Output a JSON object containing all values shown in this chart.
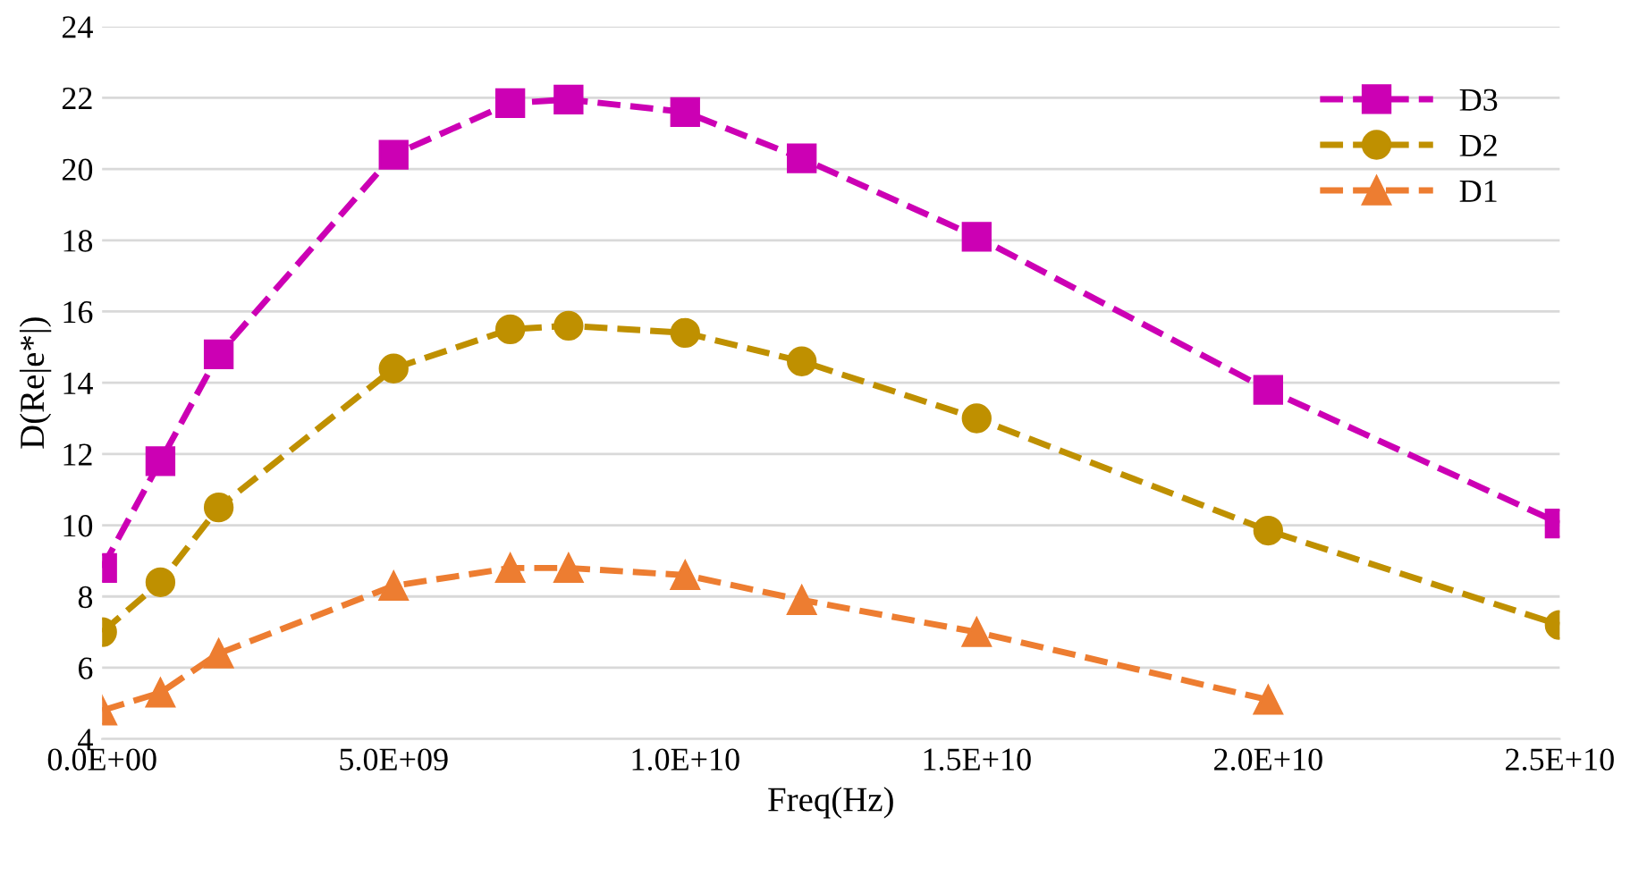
{
  "chart_data": {
    "type": "line",
    "xlabel": "Freq(Hz)",
    "ylabel": "D(Re|e*|)",
    "x": [
      0,
      1000000000,
      2000000000,
      5000000000,
      7000000000,
      8000000000,
      10000000000,
      12000000000,
      15000000000,
      20000000000,
      25000000000
    ],
    "series": [
      {
        "name": "D3",
        "color": "#cc00b4",
        "marker": "square",
        "values": [
          8.8,
          11.8,
          14.8,
          20.4,
          21.85,
          21.95,
          21.6,
          20.3,
          18.1,
          13.8,
          10.05
        ]
      },
      {
        "name": "D2",
        "color": "#bf9000",
        "marker": "circle",
        "values": [
          7.0,
          8.4,
          10.5,
          14.4,
          15.5,
          15.6,
          15.4,
          14.6,
          13.0,
          9.85,
          7.2
        ]
      },
      {
        "name": "D1",
        "color": "#ed7d31",
        "marker": "triangle",
        "values": [
          4.8,
          5.3,
          6.4,
          8.3,
          8.8,
          8.8,
          8.6,
          7.9,
          7.0,
          5.1,
          null
        ]
      }
    ],
    "line_style": "dashed",
    "xlim": [
      0,
      25000000000
    ],
    "xticks": [
      {
        "value": 0,
        "label": "0.0E+00"
      },
      {
        "value": 5000000000,
        "label": "5.0E+09"
      },
      {
        "value": 10000000000,
        "label": "1.0E+10"
      },
      {
        "value": 15000000000,
        "label": "1.5E+10"
      },
      {
        "value": 20000000000,
        "label": "2.0E+10"
      },
      {
        "value": 25000000000,
        "label": "2.5E+10"
      }
    ],
    "ylim": [
      4,
      24
    ],
    "yticks": [
      4,
      6,
      8,
      10,
      12,
      14,
      16,
      18,
      20,
      22,
      24
    ],
    "grid": "y",
    "legend": "top right"
  }
}
